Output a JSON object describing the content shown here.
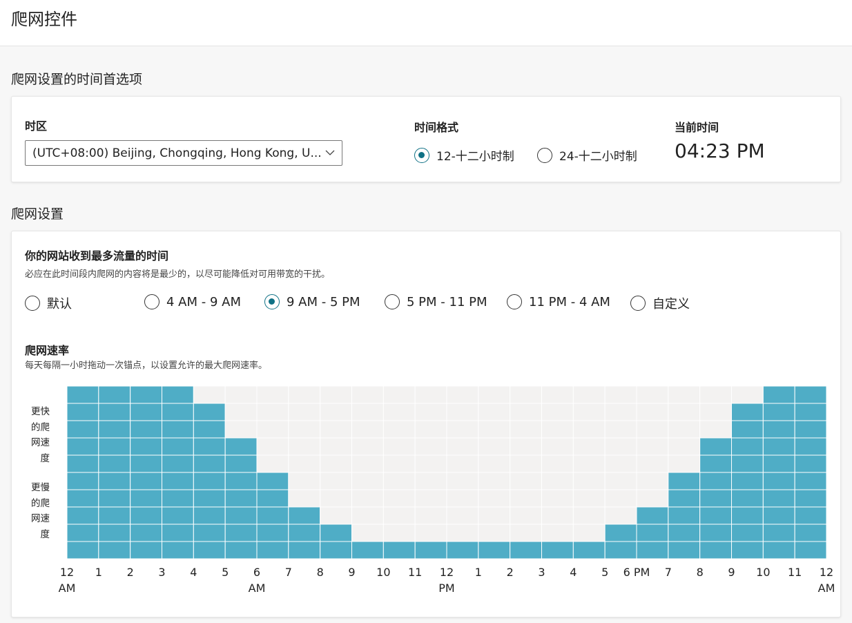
{
  "page": {
    "title": "爬网控件"
  },
  "time_section": {
    "title": "爬网设置的时间首选项",
    "timezone": {
      "label": "时区",
      "value": "(UTC+08:00) Beijing, Chongqing, Hong Kong, U..."
    },
    "time_format": {
      "label": "时间格式",
      "options": [
        {
          "label": "12-十二小时制",
          "checked": true
        },
        {
          "label": "24-十二小时制",
          "checked": false
        }
      ]
    },
    "current_time": {
      "label": "当前时间",
      "value": "04:23 PM"
    }
  },
  "crawl_section": {
    "title": "爬网设置",
    "peak": {
      "heading": "你的网站收到最多流量的时间",
      "description": "必应在此时间段内爬网的内容将是最少的，以尽可能降低对可用带宽的干扰。",
      "options": [
        {
          "label": "默认",
          "checked": false
        },
        {
          "label": "4 AM - 9 AM",
          "checked": false
        },
        {
          "label": "9 AM - 5 PM",
          "checked": true
        },
        {
          "label": "5 PM - 11 PM",
          "checked": false
        },
        {
          "label": "11 PM - 4 AM",
          "checked": false
        },
        {
          "label": "自定义",
          "checked": false
        }
      ]
    },
    "rate": {
      "heading": "爬网速率",
      "description": "每天每隔一小时拖动一次锚点，以设置允许的最大爬网速率。",
      "y_labels": {
        "top": [
          "更快",
          "的爬",
          "网速",
          "度"
        ],
        "bottom": [
          "更慢",
          "的爬",
          "网速",
          "度"
        ]
      }
    }
  },
  "colors": {
    "bar": "#4fadc6",
    "grid_bg": "#f3f2f1",
    "accent": "#0f7185"
  },
  "chart_data": {
    "type": "bar",
    "levels": 10,
    "x_tick_labels": [
      [
        "12",
        "AM"
      ],
      [
        "1"
      ],
      [
        "2"
      ],
      [
        "3"
      ],
      [
        "4"
      ],
      [
        "5"
      ],
      [
        "6",
        "AM"
      ],
      [
        "7"
      ],
      [
        "8"
      ],
      [
        "9"
      ],
      [
        "10"
      ],
      [
        "11"
      ],
      [
        "12",
        "PM"
      ],
      [
        "1"
      ],
      [
        "2"
      ],
      [
        "3"
      ],
      [
        "4"
      ],
      [
        "5"
      ],
      [
        "6 PM"
      ],
      [
        "7"
      ],
      [
        "8"
      ],
      [
        "9"
      ],
      [
        "10"
      ],
      [
        "11"
      ],
      [
        "12",
        "AM"
      ]
    ],
    "values": [
      10,
      10,
      10,
      10,
      9,
      7,
      5,
      3,
      2,
      1,
      1,
      1,
      1,
      1,
      1,
      1,
      1,
      2,
      3,
      5,
      7,
      9,
      10,
      10
    ]
  }
}
